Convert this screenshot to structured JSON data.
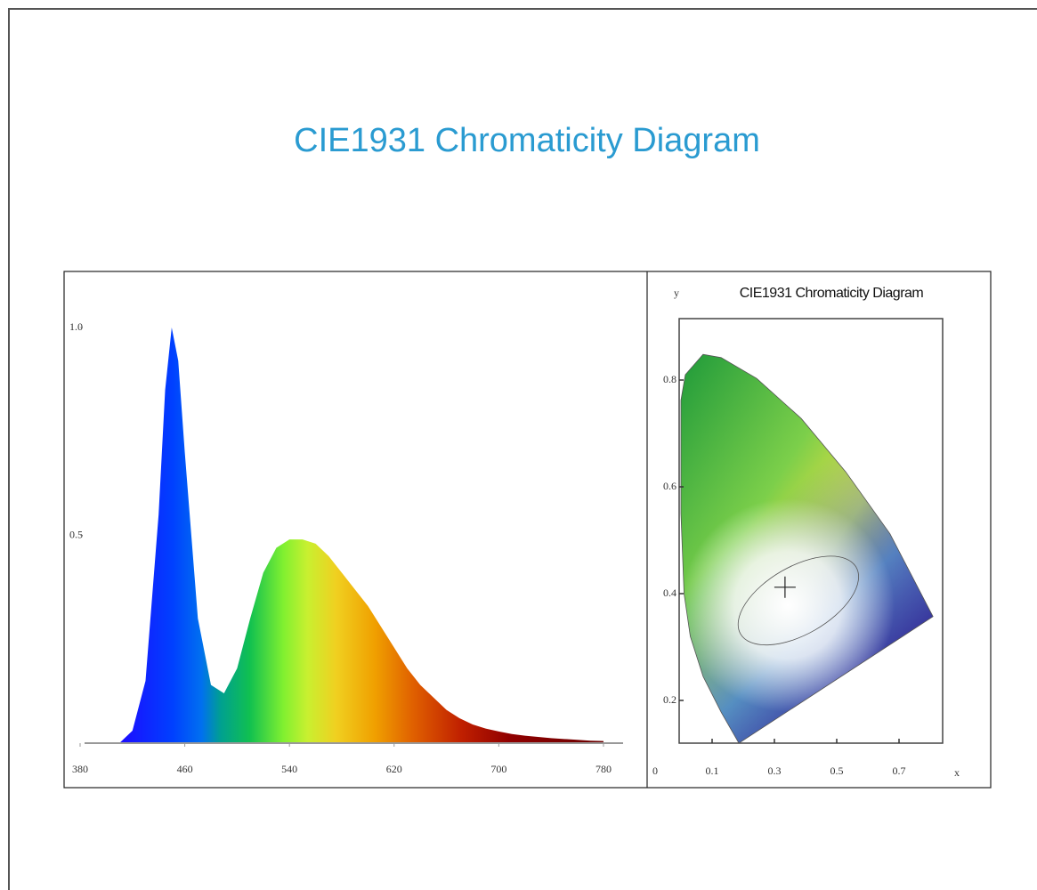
{
  "title": "CIE1931 Chromaticity Diagram",
  "chart_data": [
    {
      "type": "area",
      "x": [
        410,
        420,
        430,
        440,
        445,
        450,
        455,
        460,
        470,
        480,
        490,
        500,
        510,
        520,
        530,
        540,
        550,
        560,
        570,
        580,
        590,
        600,
        610,
        620,
        630,
        640,
        650,
        660,
        670,
        680,
        690,
        700,
        710,
        720,
        730,
        740,
        750,
        760,
        770,
        780
      ],
      "values": [
        0.0,
        0.03,
        0.15,
        0.55,
        0.85,
        1.0,
        0.92,
        0.7,
        0.3,
        0.14,
        0.12,
        0.18,
        0.3,
        0.41,
        0.47,
        0.49,
        0.49,
        0.48,
        0.45,
        0.41,
        0.37,
        0.33,
        0.28,
        0.23,
        0.18,
        0.14,
        0.11,
        0.08,
        0.06,
        0.045,
        0.035,
        0.028,
        0.022,
        0.018,
        0.015,
        0.012,
        0.01,
        0.008,
        0.006,
        0.005
      ],
      "xlim": [
        380,
        795
      ],
      "ylim": [
        0,
        1.06
      ],
      "xticks": [
        380,
        460,
        540,
        620,
        700,
        780
      ],
      "yticks": [
        0.5,
        {
          "value": 1,
          "label": "1.0"
        }
      ]
    },
    {
      "type": "line",
      "title": "CIE1931 Chromaticity Diagram",
      "x_label": "x",
      "y_label": "y",
      "origin_label": "0",
      "x": [
        0.186,
        0.129,
        0.071,
        0.03,
        0.01,
        0.0,
        0.0,
        0.014,
        0.071,
        0.129,
        0.243,
        0.386,
        0.529,
        0.671,
        0.809
      ],
      "values": [
        0.12,
        0.178,
        0.245,
        0.32,
        0.4,
        0.55,
        0.762,
        0.81,
        0.848,
        0.842,
        0.803,
        0.728,
        0.628,
        0.512,
        0.357
      ],
      "white_point": {
        "x": 0.334,
        "y": 0.412
      },
      "xlim": [
        0,
        0.84
      ],
      "ylim": [
        0.12,
        0.915
      ],
      "xticks": [
        0.1,
        0.3,
        0.5,
        0.7
      ],
      "yticks": [
        0.2,
        0.4,
        0.6,
        0.8
      ]
    }
  ]
}
